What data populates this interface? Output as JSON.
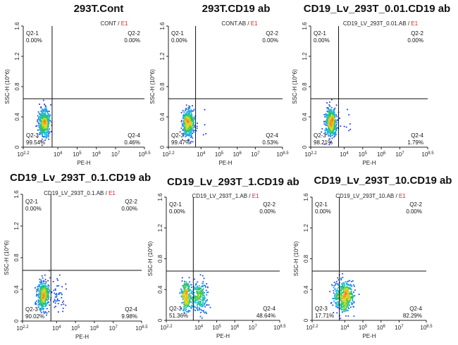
{
  "chart_data": [
    {
      "type": "scatter",
      "title": "293T.Cont",
      "sample": "CONT",
      "gate": "E1",
      "xlabel": "PE-H",
      "ylabel": "SSC-H (10^6)",
      "xlim": [
        2.2,
        8.5
      ],
      "ylim": [
        0,
        1.6
      ],
      "x_ticks": [
        "2.2",
        "4",
        "5",
        "6",
        "7",
        "8.5"
      ],
      "y_ticks": [
        "0",
        "0.4",
        "0.8",
        "1.2",
        "1.6"
      ],
      "gate_x": 3.7,
      "gate_y": 0.64,
      "quadrants": {
        "Q2-1": "0.00%",
        "Q2-2": "0.00%",
        "Q2-3": "99.54%",
        "Q2-4": "0.46%"
      },
      "populations": [
        {
          "center": [
            3.3,
            0.32
          ],
          "spread": [
            0.15,
            0.09
          ],
          "fraction": 0.9954
        }
      ]
    },
    {
      "type": "scatter",
      "title": "293T.CD19 ab",
      "sample": "CONT.AB",
      "gate": "E1",
      "xlabel": "PE-H",
      "ylabel": "SSC-H (10^6)",
      "xlim": [
        2.2,
        8.5
      ],
      "ylim": [
        0,
        1.6
      ],
      "x_ticks": [
        "2.2",
        "4",
        "5",
        "6",
        "7",
        "8.5"
      ],
      "y_ticks": [
        "0",
        "0.4",
        "0.8",
        "1.2",
        "1.6"
      ],
      "gate_x": 3.7,
      "gate_y": 0.64,
      "quadrants": {
        "Q2-1": "0.00%",
        "Q2-2": "0.00%",
        "Q2-3": "99.47%",
        "Q2-4": "0.53%"
      },
      "populations": [
        {
          "center": [
            3.3,
            0.32
          ],
          "spread": [
            0.15,
            0.09
          ],
          "fraction": 0.9947
        }
      ]
    },
    {
      "type": "scatter",
      "title": "CD19_Lv_293T_0.01.CD19 ab",
      "sample": "CD19_LV_293T_0.01.AB",
      "gate": "E1",
      "xlabel": "PE-H",
      "ylabel": "SSC-H (10^6)",
      "xlim": [
        2.2,
        8.5
      ],
      "ylim": [
        0,
        1.6
      ],
      "x_ticks": [
        "2.2",
        "4",
        "5",
        "6",
        "7",
        "8.5"
      ],
      "y_ticks": [
        "0",
        "0.4",
        "0.8",
        "1.2",
        "1.6"
      ],
      "gate_x": 3.7,
      "gate_y": 0.64,
      "quadrants": {
        "Q2-1": "0.00%",
        "Q2-2": "0.00%",
        "Q2-3": "98.21%",
        "Q2-4": "1.79%"
      },
      "populations": [
        {
          "center": [
            3.3,
            0.32
          ],
          "spread": [
            0.15,
            0.09
          ],
          "fraction": 0.9821
        }
      ]
    },
    {
      "type": "scatter",
      "title": "CD19_Lv_293T_0.1.CD19 ab",
      "sample": "CD19_LV_293T_0.1.AB",
      "gate": "E1",
      "xlabel": "PE-H",
      "ylabel": "SSC-H (10^6)",
      "xlim": [
        2.2,
        8.5
      ],
      "ylim": [
        0,
        1.6
      ],
      "x_ticks": [
        "2.2",
        "4",
        "5",
        "6",
        "7",
        "8.5"
      ],
      "y_ticks": [
        "0",
        "0.4",
        "0.8",
        "1.2",
        "1.6"
      ],
      "gate_x": 3.7,
      "gate_y": 0.64,
      "quadrants": {
        "Q2-1": "0.00%",
        "Q2-2": "0.00%",
        "Q2-3": "90.02%",
        "Q2-4": "9.98%"
      },
      "populations": [
        {
          "center": [
            3.3,
            0.32
          ],
          "spread": [
            0.15,
            0.09
          ],
          "fraction": 0.9002
        }
      ]
    },
    {
      "type": "scatter",
      "title": "CD19_Lv_293T_1.CD19 ab",
      "sample": "CD19_LV_293T_1.AB",
      "gate": "E1",
      "xlabel": "PE-H",
      "ylabel": "SSC-H (10^6)",
      "xlim": [
        2.2,
        8.5
      ],
      "ylim": [
        0,
        1.6
      ],
      "x_ticks": [
        "2.2",
        "4",
        "5",
        "6",
        "7",
        "8.5"
      ],
      "y_ticks": [
        "0",
        "0.4",
        "0.8",
        "1.2",
        "1.6"
      ],
      "gate_x": 3.7,
      "gate_y": 0.64,
      "quadrants": {
        "Q2-1": "0.00%",
        "Q2-2": "0.00%",
        "Q2-3": "51.36%",
        "Q2-4": "48.64%"
      },
      "populations": [
        {
          "center": [
            3.3,
            0.32
          ],
          "spread": [
            0.15,
            0.09
          ],
          "fraction": 0.5136
        }
      ]
    },
    {
      "type": "scatter",
      "title": "CD19_Lv_293T_10.CD19 ab",
      "sample": "CD19_LV_293T_10.AB",
      "gate": "E1",
      "xlabel": "PE-H",
      "ylabel": "SSC-H (10^6)",
      "xlim": [
        2.2,
        8.5
      ],
      "ylim": [
        0,
        1.6
      ],
      "x_ticks": [
        "2.2",
        "4",
        "5",
        "6",
        "7",
        "8.5"
      ],
      "y_ticks": [
        "0",
        "0.4",
        "0.8",
        "1.2",
        "1.6"
      ],
      "gate_x": 3.7,
      "gate_y": 0.64,
      "quadrants": {
        "Q2-1": "0.00%",
        "Q2-2": "0.00%",
        "Q2-3": "17.71%",
        "Q2-4": "82.29%"
      },
      "populations": [
        {
          "center": [
            3.6,
            0.3
          ],
          "spread": [
            0.18,
            0.1
          ],
          "fraction": 1.0
        }
      ]
    }
  ],
  "colors": {
    "axis": "#222222",
    "gate_line": "#111111",
    "gate_name": "#e02020",
    "title": "#111111"
  }
}
